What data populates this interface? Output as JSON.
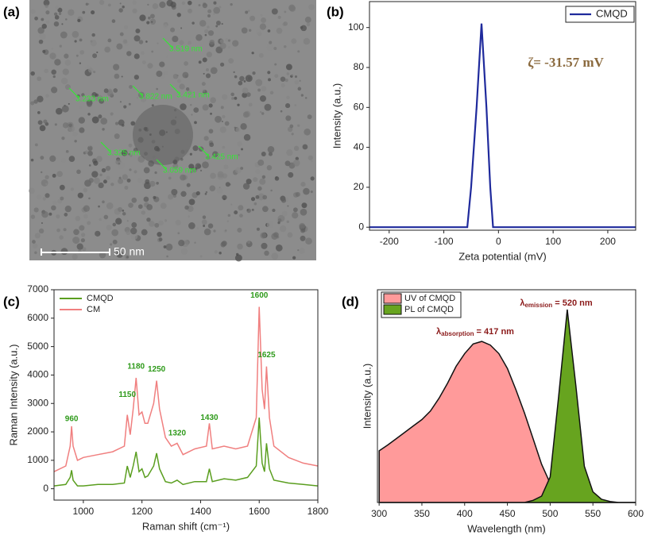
{
  "image_panel": {
    "label": "(a)",
    "scale_bar": "50 nm",
    "measurements": [
      "3.519 nm",
      "3.233 nm",
      "3.822 nm",
      "3.421 nm",
      "3.325 nm",
      "3.425 nm",
      "3.059 nm"
    ]
  },
  "chart_data": [
    {
      "type": "line",
      "label": "(b)",
      "x_label": "Zeta potential (mV)",
      "y_label": "Intensity (a.u.)",
      "x": [
        -236,
        -57,
        -50,
        -40,
        -31,
        -22,
        -15,
        -10,
        251
      ],
      "series": [
        {
          "name": "CMQD",
          "color": "#1f2a9c",
          "values": [
            0,
            0,
            20,
            60,
            102,
            60,
            20,
            0,
            0
          ]
        }
      ],
      "xlim": [
        -236,
        251
      ],
      "xticks": [
        -200,
        -100,
        0,
        100,
        200
      ],
      "ylim": [
        -1.5,
        113
      ],
      "yticks": [
        0,
        20,
        40,
        60,
        80,
        100
      ],
      "legend": "top-right",
      "annotations": [
        {
          "text": "ζ= -31.57 mV",
          "color": "#8b6a3e"
        }
      ]
    },
    {
      "type": "line",
      "label": "(c)",
      "x_label": "Raman shift (cm⁻¹)",
      "y_label": "Raman Intensity (a.u.)",
      "x": [
        900,
        940,
        955,
        960,
        965,
        980,
        1000,
        1050,
        1100,
        1140,
        1150,
        1160,
        1170,
        1180,
        1190,
        1200,
        1210,
        1220,
        1240,
        1250,
        1260,
        1280,
        1300,
        1320,
        1340,
        1380,
        1420,
        1430,
        1440,
        1480,
        1520,
        1560,
        1590,
        1600,
        1610,
        1618,
        1625,
        1635,
        1650,
        1700,
        1750,
        1800
      ],
      "series": [
        {
          "name": "CMQD",
          "color": "#5a9e1f",
          "values": [
            100,
            150,
            400,
            650,
            300,
            100,
            100,
            150,
            150,
            200,
            800,
            400,
            800,
            1300,
            600,
            700,
            400,
            450,
            800,
            1250,
            700,
            250,
            200,
            300,
            150,
            250,
            250,
            700,
            250,
            350,
            300,
            400,
            800,
            2500,
            900,
            600,
            1600,
            700,
            300,
            200,
            150,
            100
          ]
        },
        {
          "name": "CM",
          "color": "#f07f7f",
          "values": [
            600,
            800,
            1500,
            2200,
            1500,
            1000,
            1100,
            1200,
            1300,
            1500,
            2600,
            1900,
            2800,
            3900,
            2600,
            2700,
            2300,
            2300,
            3000,
            3800,
            2800,
            1800,
            1500,
            1600,
            1200,
            1400,
            1500,
            2300,
            1400,
            1500,
            1400,
            1500,
            2500,
            6400,
            3500,
            2800,
            4300,
            2500,
            1500,
            1100,
            900,
            800
          ]
        }
      ],
      "xlim": [
        900,
        1800
      ],
      "xticks": [
        1000,
        1200,
        1400,
        1600,
        1800
      ],
      "ylim": [
        -400,
        7000
      ],
      "yticks": [
        0,
        1000,
        2000,
        3000,
        4000,
        5000,
        6000,
        7000
      ],
      "legend": "top-left",
      "annotations": [
        {
          "text": "960",
          "x": 960,
          "y": 2450
        },
        {
          "text": "1150",
          "x": 1150,
          "y": 3300
        },
        {
          "text": "1180",
          "x": 1180,
          "y": 4300
        },
        {
          "text": "1250",
          "x": 1250,
          "y": 4200
        },
        {
          "text": "1320",
          "x": 1320,
          "y": 1950
        },
        {
          "text": "1430",
          "x": 1430,
          "y": 2500
        },
        {
          "text": "1600",
          "x": 1600,
          "y": 6800
        },
        {
          "text": "1625",
          "x": 1625,
          "y": 4700
        }
      ]
    },
    {
      "type": "area",
      "label": "(d)",
      "x_label": "Wavelength (nm)",
      "y_label": "Intensity (a.u.)",
      "x": [
        300,
        310,
        320,
        330,
        340,
        350,
        360,
        370,
        380,
        390,
        400,
        410,
        420,
        430,
        440,
        450,
        460,
        470,
        480,
        490,
        500,
        510,
        520,
        530,
        540,
        550,
        560,
        570,
        580,
        590,
        600
      ],
      "series": [
        {
          "name": "UV of CMQD",
          "color": "#ff9a9a",
          "values": [
            0.243,
            0.27,
            0.3,
            0.33,
            0.36,
            0.39,
            0.43,
            0.49,
            0.56,
            0.64,
            0.7,
            0.745,
            0.757,
            0.74,
            0.7,
            0.63,
            0.53,
            0.42,
            0.3,
            0.18,
            0.09,
            0.04,
            0.015,
            0.005,
            0,
            0,
            0,
            0,
            0,
            0,
            0
          ]
        },
        {
          "name": "PL of CMQD",
          "color": "#67a41f",
          "values": [
            0,
            0,
            0,
            0,
            0,
            0,
            0,
            0,
            0,
            0,
            0,
            0,
            0,
            0,
            0,
            0,
            0,
            0,
            0.01,
            0.03,
            0.12,
            0.5,
            0.907,
            0.55,
            0.17,
            0.05,
            0.015,
            0.005,
            0,
            0,
            0
          ]
        }
      ],
      "xlim": [
        298,
        600
      ],
      "xticks": [
        300,
        350,
        400,
        450,
        500,
        550,
        600
      ],
      "ylim": [
        0,
        1
      ],
      "legend": "top-left",
      "annotations": [
        {
          "symbol": "λ",
          "subscript": "absorption",
          "text": " = 417 nm",
          "color": "#8b1a1a"
        },
        {
          "symbol": "λ",
          "subscript": "emission",
          "text": " = 520 nm",
          "color": "#8b1a1a"
        }
      ]
    }
  ]
}
